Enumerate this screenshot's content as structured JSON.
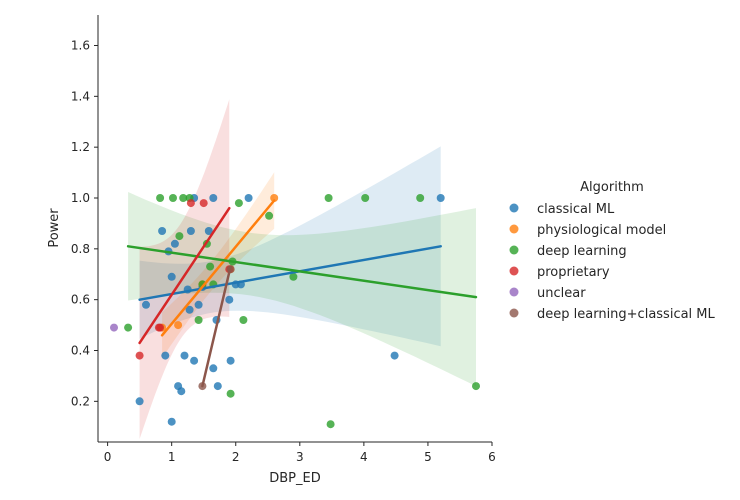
{
  "chart_data": {
    "type": "scatter",
    "xlabel": "DBP_ED",
    "ylabel": "Power",
    "xlim": [
      -0.15,
      6.0
    ],
    "ylim": [
      0.04,
      1.72
    ],
    "xticks": [
      "0",
      "1",
      "2",
      "3",
      "4",
      "5",
      "6"
    ],
    "yticks": [
      "0.2",
      "0.4",
      "0.6",
      "0.8",
      "1.0",
      "1.2",
      "1.4",
      "1.6"
    ],
    "legend": {
      "title": "Algorithm",
      "placement": "right"
    },
    "series": [
      {
        "name": "classical ML",
        "color": "#1f77b4",
        "points": [
          [
            0.5,
            0.2
          ],
          [
            0.6,
            0.58
          ],
          [
            0.85,
            0.87
          ],
          [
            0.9,
            0.38
          ],
          [
            0.95,
            0.79
          ],
          [
            1.0,
            0.69
          ],
          [
            1.0,
            0.12
          ],
          [
            1.05,
            0.82
          ],
          [
            1.1,
            0.26
          ],
          [
            1.15,
            0.24
          ],
          [
            1.2,
            0.38
          ],
          [
            1.25,
            0.64
          ],
          [
            1.28,
            0.56
          ],
          [
            1.3,
            0.87
          ],
          [
            1.35,
            1.0
          ],
          [
            1.35,
            0.36
          ],
          [
            1.42,
            0.58
          ],
          [
            1.48,
            0.65
          ],
          [
            1.58,
            0.87
          ],
          [
            1.65,
            0.33
          ],
          [
            1.65,
            1.0
          ],
          [
            1.7,
            0.52
          ],
          [
            1.72,
            0.26
          ],
          [
            1.9,
            0.6
          ],
          [
            1.92,
            0.36
          ],
          [
            2.0,
            0.66
          ],
          [
            2.08,
            0.66
          ],
          [
            2.2,
            1.0
          ],
          [
            4.48,
            0.38
          ],
          [
            5.2,
            1.0
          ]
        ],
        "fit": [
          [
            0.5,
            0.6
          ],
          [
            5.2,
            0.81
          ]
        ]
      },
      {
        "name": "physiological model",
        "color": "#ff7f0e",
        "points": [
          [
            0.85,
            0.49
          ],
          [
            1.1,
            0.5
          ],
          [
            1.48,
            0.66
          ],
          [
            1.92,
            0.72
          ],
          [
            2.6,
            1.0
          ]
        ],
        "fit": [
          [
            0.85,
            0.46
          ],
          [
            2.6,
            0.99
          ]
        ]
      },
      {
        "name": "deep learning",
        "color": "#2ca02c",
        "points": [
          [
            0.32,
            0.49
          ],
          [
            0.82,
            1.0
          ],
          [
            1.02,
            1.0
          ],
          [
            1.12,
            0.85
          ],
          [
            1.18,
            1.0
          ],
          [
            1.28,
            1.0
          ],
          [
            1.42,
            0.52
          ],
          [
            1.48,
            0.66
          ],
          [
            1.55,
            0.82
          ],
          [
            1.6,
            0.73
          ],
          [
            1.65,
            0.66
          ],
          [
            1.92,
            0.23
          ],
          [
            1.95,
            0.75
          ],
          [
            2.05,
            0.98
          ],
          [
            2.12,
            0.52
          ],
          [
            2.52,
            0.93
          ],
          [
            2.9,
            0.69
          ],
          [
            3.45,
            1.0
          ],
          [
            3.48,
            0.11
          ],
          [
            4.02,
            1.0
          ],
          [
            4.88,
            1.0
          ],
          [
            5.75,
            0.26
          ]
        ],
        "fit": [
          [
            0.32,
            0.81
          ],
          [
            5.75,
            0.61
          ]
        ]
      },
      {
        "name": "proprietary",
        "color": "#d62728",
        "points": [
          [
            0.5,
            0.38
          ],
          [
            0.8,
            0.49
          ],
          [
            0.82,
            0.49
          ],
          [
            1.3,
            0.98
          ],
          [
            1.5,
            0.98
          ],
          [
            1.9,
            0.72
          ]
        ],
        "fit": [
          [
            0.5,
            0.43
          ],
          [
            1.9,
            0.96
          ]
        ]
      },
      {
        "name": "unclear",
        "color": "#9467bd",
        "points": [
          [
            0.1,
            0.49
          ]
        ],
        "fit": null
      },
      {
        "name": "deep learning+classical ML",
        "color": "#8c564b",
        "points": [
          [
            1.48,
            0.26
          ],
          [
            1.92,
            0.72
          ]
        ],
        "fit": [
          [
            1.48,
            0.26
          ],
          [
            1.92,
            0.73
          ]
        ]
      }
    ]
  }
}
